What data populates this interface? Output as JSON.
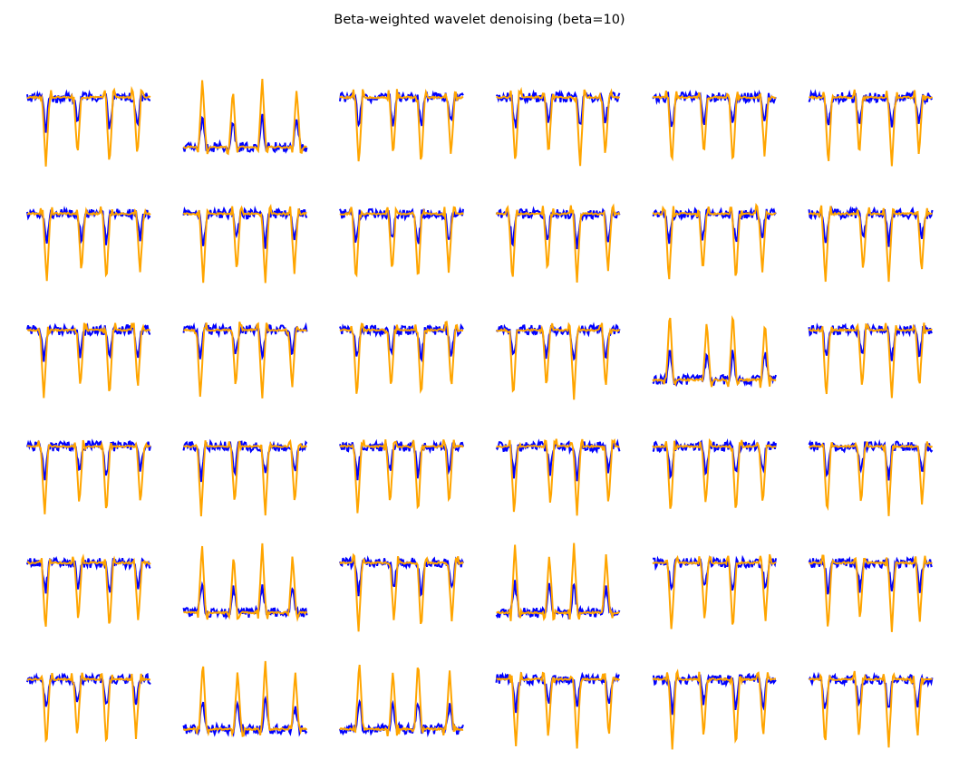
{
  "figure": {
    "title": "Beta-weighted wavelet denoising (beta=10)"
  },
  "chart_data": {
    "type": "line",
    "layout": "small-multiples",
    "rows": 6,
    "cols": 6,
    "axes_visible": false,
    "grid": false,
    "legend": "none",
    "colors": {
      "noisy": "#0000ff",
      "denoised": "#ffa500"
    },
    "series_roles": [
      "noisy",
      "denoised"
    ],
    "panel_style": {
      "p0": "spikes-down",
      "p1": "spikes-up",
      "p2": "spikes-down",
      "p3": "spikes-down",
      "p4": "spikes-down",
      "p5": "spikes-down",
      "p6": "spikes-down",
      "p7": "spikes-down",
      "p8": "spikes-down",
      "p9": "spikes-down",
      "p10": "spikes-down",
      "p11": "spikes-down",
      "p12": "spikes-down",
      "p13": "spikes-down",
      "p14": "spikes-down",
      "p15": "spikes-down",
      "p16": "spikes-up",
      "p17": "spikes-down",
      "p18": "spikes-down",
      "p19": "spikes-down",
      "p20": "spikes-down",
      "p21": "spikes-down",
      "p22": "spikes-down",
      "p23": "spikes-down",
      "p24": "spikes-down",
      "p25": "spikes-up",
      "p26": "spikes-down",
      "p27": "spikes-up",
      "p28": "spikes-down",
      "p29": "spikes-down",
      "p30": "spikes-down",
      "p31": "spikes-up",
      "p32": "spikes-up",
      "p33": "spikes-down",
      "p34": "spikes-down",
      "p35": "spikes-down"
    },
    "ylim": [
      -1,
      1
    ]
  }
}
